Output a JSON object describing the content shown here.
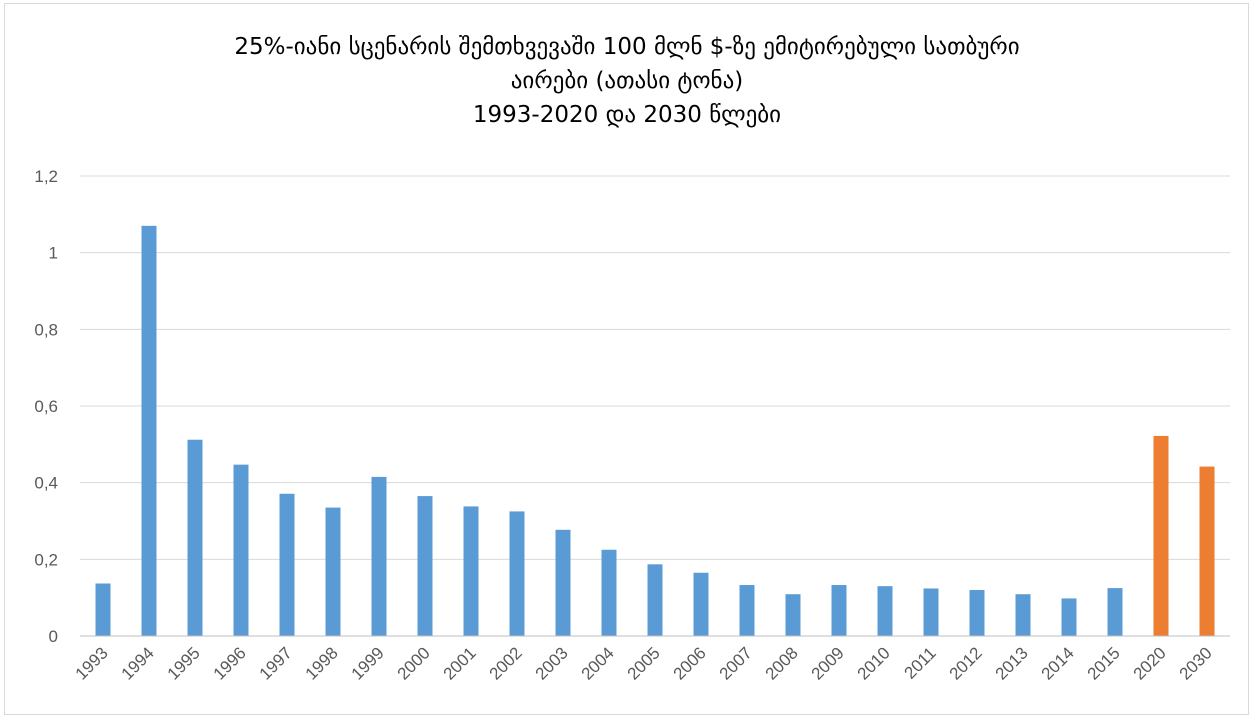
{
  "chart_data": {
    "type": "bar",
    "title_lines": [
      "25%-იანი სცენარის შემთხვევაში 100 მლნ $-ზე ემიტირებული სათბური",
      "აირები  (ათასი ტონა)",
      "1993-2020 და 2030 წლები"
    ],
    "xlabel": "",
    "ylabel": "",
    "ylim": [
      0,
      1.2
    ],
    "yticks": [
      "0",
      "0,2",
      "0,4",
      "0,6",
      "0,8",
      "1",
      "1,2"
    ],
    "grid": true,
    "legend": "none",
    "categories": [
      "1993",
      "1994",
      "1995",
      "1996",
      "1997",
      "1998",
      "1999",
      "2000",
      "2001",
      "2002",
      "2003",
      "2004",
      "2005",
      "2006",
      "2007",
      "2008",
      "2009",
      "2010",
      "2011",
      "2012",
      "2013",
      "2014",
      "2015",
      "2020",
      "2030"
    ],
    "values": [
      0.137,
      1.07,
      0.512,
      0.447,
      0.371,
      0.335,
      0.415,
      0.365,
      0.338,
      0.325,
      0.277,
      0.225,
      0.187,
      0.165,
      0.133,
      0.109,
      0.133,
      0.13,
      0.124,
      0.12,
      0.109,
      0.098,
      0.125,
      0.522,
      0.442
    ],
    "colors": {
      "historical": "#5b9bd5",
      "projection": "#ed7d31",
      "grid": "#d9d9d9",
      "axis": "#bfbfbf",
      "tick_text": "#595959"
    },
    "projection_categories": [
      "2020",
      "2030"
    ]
  }
}
